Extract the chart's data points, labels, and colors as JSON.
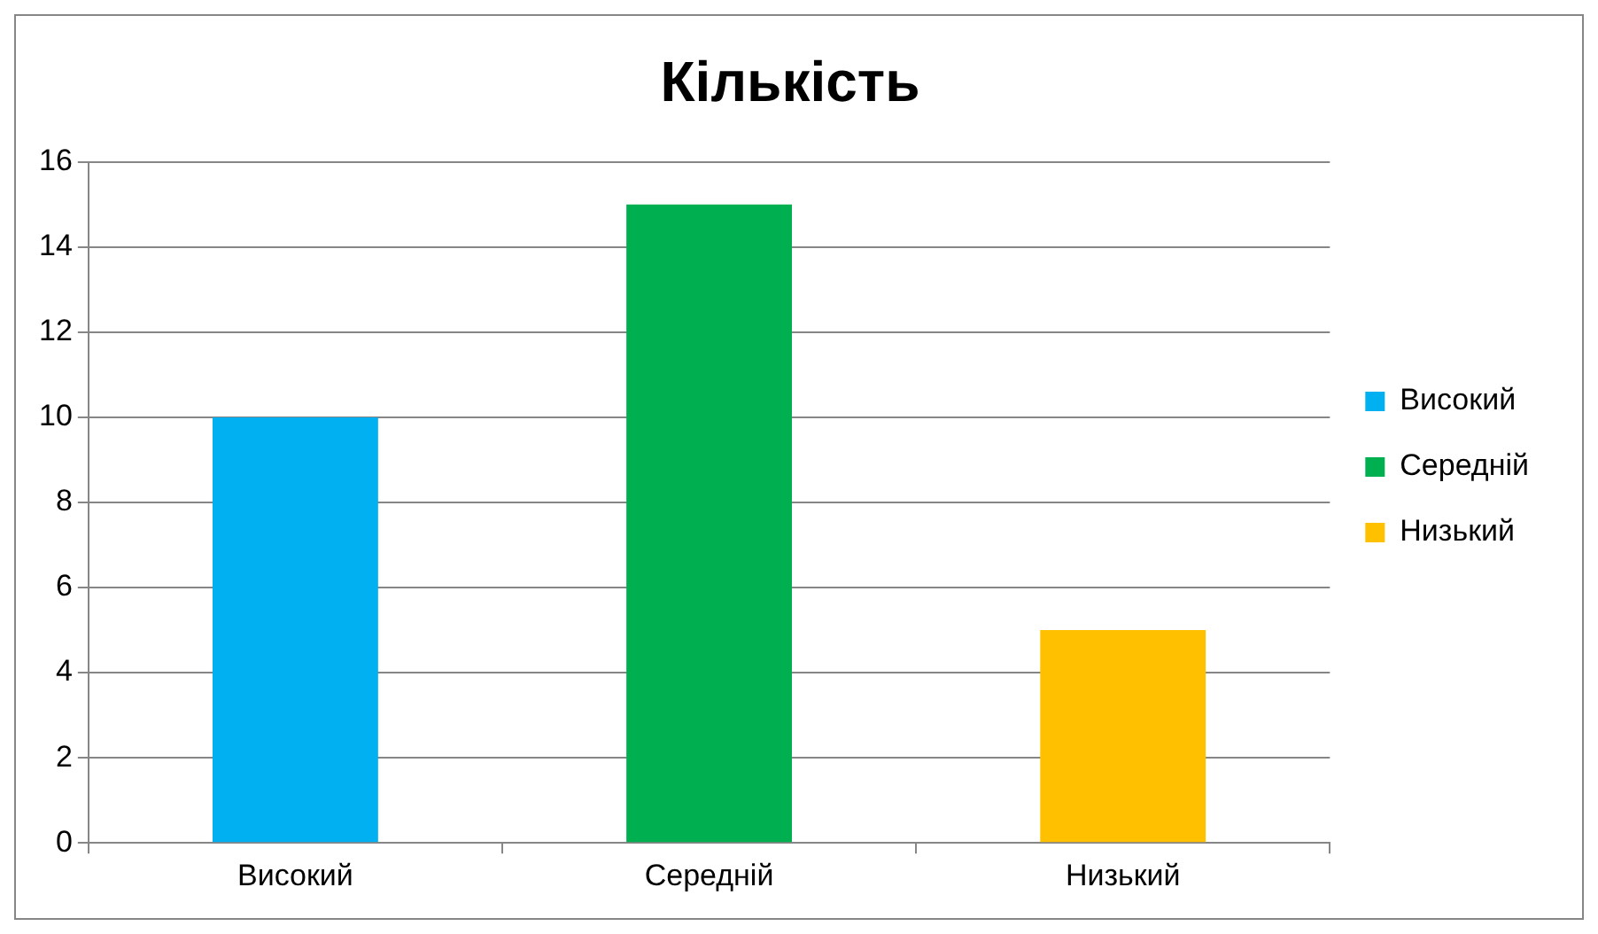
{
  "chart_data": {
    "type": "bar",
    "title": "Кількість",
    "categories": [
      "Високий",
      "Середній",
      "Низький"
    ],
    "series": [
      {
        "name": "Високий",
        "color": "#00b0f0",
        "values": [
          10,
          null,
          null
        ]
      },
      {
        "name": "Середній",
        "color": "#00b050",
        "values": [
          null,
          15,
          null
        ]
      },
      {
        "name": "Низький",
        "color": "#ffc000",
        "values": [
          null,
          null,
          5
        ]
      }
    ],
    "stacked": true,
    "ylim": [
      0,
      16
    ],
    "yticks": [
      0,
      2,
      4,
      6,
      8,
      10,
      12,
      14,
      16
    ],
    "grid": "y",
    "legend": "right"
  }
}
